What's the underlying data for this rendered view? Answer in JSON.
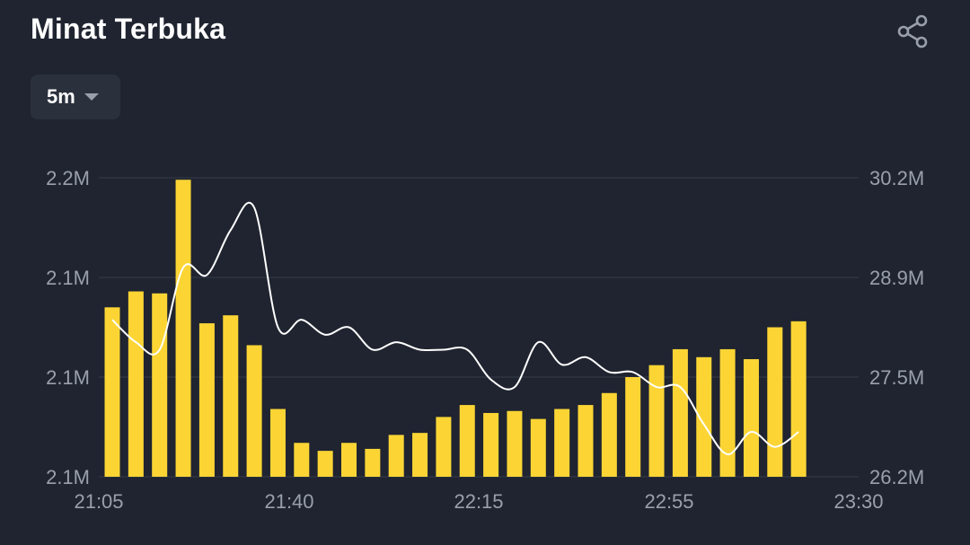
{
  "title": "Minat Terbuka",
  "interval": {
    "label": "5m"
  },
  "icons": {
    "share": "share-icon",
    "dropdown": "caret-down-icon"
  },
  "colors": {
    "background": "#1f2430",
    "bars": "#fcd535",
    "line": "#ffffff",
    "grid": "#363c48",
    "text": "#9aa0aa"
  },
  "chart_data": {
    "type": "bar",
    "title": "Minat Terbuka",
    "x_tick_labels": [
      "21:05",
      "21:40",
      "22:15",
      "22:55",
      "23:30"
    ],
    "left_axis": {
      "tick_labels": [
        "2.2M",
        "2.1M",
        "2.1M",
        "2.1M"
      ],
      "ylim": [
        2.07,
        2.22
      ]
    },
    "right_axis": {
      "tick_labels": [
        "30.2M",
        "28.9M",
        "27.5M",
        "26.2M"
      ],
      "ylim": [
        26.2,
        30.2
      ]
    },
    "grid": true,
    "bars": {
      "axis": "left",
      "x": [
        "21:05",
        "21:10",
        "21:15",
        "21:20",
        "21:25",
        "21:30",
        "21:35",
        "21:40",
        "21:45",
        "21:50",
        "21:55",
        "22:00",
        "22:05",
        "22:10",
        "22:15",
        "22:20",
        "22:25",
        "22:30",
        "22:35",
        "22:40",
        "22:45",
        "22:50",
        "22:55",
        "23:00",
        "23:05",
        "23:10",
        "23:15",
        "23:20",
        "23:25",
        "23:30"
      ],
      "values": [
        2.155,
        2.163,
        2.162,
        2.219,
        2.147,
        2.151,
        2.136,
        2.104,
        2.087,
        2.083,
        2.087,
        2.084,
        2.091,
        2.092,
        2.1,
        2.106,
        2.102,
        2.103,
        2.099,
        2.104,
        2.106,
        2.112,
        2.12,
        2.126,
        2.134,
        2.13,
        2.134,
        2.129,
        2.145,
        2.148
      ]
    },
    "line": {
      "axis": "right",
      "x": [
        "21:05",
        "21:10",
        "21:15",
        "21:20",
        "21:25",
        "21:30",
        "21:35",
        "21:40",
        "21:45",
        "21:50",
        "21:55",
        "22:00",
        "22:05",
        "22:10",
        "22:15",
        "22:20",
        "22:25",
        "22:30",
        "22:35",
        "22:40",
        "22:45",
        "22:50",
        "22:55",
        "23:00",
        "23:05",
        "23:10",
        "23:15",
        "23:20",
        "23:25",
        "23:30"
      ],
      "values": [
        28.3,
        28.0,
        27.9,
        29.0,
        28.9,
        29.5,
        29.8,
        28.2,
        28.3,
        28.1,
        28.2,
        27.9,
        28.0,
        27.9,
        27.9,
        27.9,
        27.5,
        27.4,
        28.0,
        27.7,
        27.8,
        27.6,
        27.6,
        27.4,
        27.4,
        26.9,
        26.5,
        26.8,
        26.6,
        26.8
      ]
    }
  }
}
